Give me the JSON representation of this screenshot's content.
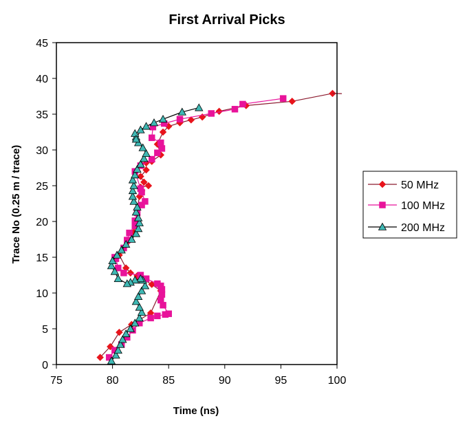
{
  "chart_data": {
    "type": "scatter",
    "title": "First Arrival Picks",
    "xlabel": "Time (ns)",
    "ylabel": "Trace No (0.25 m / trace)",
    "xlim": [
      75,
      100
    ],
    "ylim": [
      0,
      45
    ],
    "xticks": [
      "75",
      "80",
      "85",
      "90",
      "95",
      "100"
    ],
    "yticks": [
      "0",
      "5",
      "10",
      "15",
      "20",
      "25",
      "30",
      "35",
      "40",
      "45"
    ],
    "grid": false,
    "legend_position": "right",
    "series": [
      {
        "name": "50 MHz",
        "marker": "diamond",
        "color": "#e8141c",
        "line_color": "#8b1a2e",
        "x": [
          78.9,
          79.8,
          80.6,
          81.7,
          83.4,
          84.3,
          83.5,
          82.2,
          81.6,
          81.2,
          80.6,
          80.9,
          81.4,
          81.9,
          82.1,
          82.2,
          82.4,
          82.6,
          82.5,
          83.2,
          82.8,
          82.5,
          83.0,
          83.0,
          83.5,
          84.3,
          84.0,
          84.5,
          85.0,
          86.0,
          87.0,
          88.0,
          89.5,
          91.9,
          96.0,
          99.6
        ],
        "y": [
          1.0,
          2.5,
          4.5,
          5.6,
          7.2,
          10.3,
          11.2,
          12.4,
          12.8,
          13.5,
          15.3,
          16.0,
          17.2,
          18.5,
          20.0,
          21.8,
          23.5,
          24.3,
          24.8,
          25.0,
          25.5,
          26.3,
          27.2,
          28.2,
          28.4,
          29.3,
          30.8,
          32.5,
          33.3,
          33.8,
          34.2,
          34.6,
          35.4,
          36.2,
          36.8,
          37.9
        ]
      },
      {
        "name": "100 MHz",
        "marker": "square",
        "color": "#e8139a",
        "line_color": "#e8139a",
        "x": [
          79.7,
          80.2,
          80.8,
          81.3,
          81.8,
          82.4,
          83.4,
          84.0,
          84.7,
          85.0,
          84.5,
          84.3,
          84.4,
          84.4,
          84.3,
          84.0,
          83.0,
          82.5,
          81.0,
          80.5,
          80.3,
          80.2,
          81.0,
          81.3,
          81.5,
          82.0,
          82.0,
          82.2,
          82.6,
          82.9,
          82.6,
          82.5,
          82.0,
          82.5,
          83.5,
          84.0,
          84.4,
          84.3,
          83.5,
          83.6,
          84.6,
          86.0,
          88.8,
          90.9,
          91.6,
          95.2
        ],
        "y": [
          1.0,
          2.0,
          2.8,
          3.8,
          4.8,
          5.8,
          6.5,
          6.8,
          7.0,
          7.1,
          8.3,
          9.0,
          9.8,
          10.5,
          11.0,
          11.3,
          12.0,
          12.5,
          12.8,
          13.5,
          14.8,
          15.0,
          16.3,
          17.4,
          18.4,
          19.4,
          20.1,
          21.2,
          22.3,
          22.8,
          24.1,
          24.6,
          27.0,
          27.8,
          28.7,
          29.6,
          30.2,
          31.0,
          31.7,
          33.2,
          33.7,
          34.3,
          35.1,
          35.7,
          36.4,
          37.2
        ]
      },
      {
        "name": "200 MHz",
        "marker": "triangle",
        "color": "#3fb8b4",
        "line_color": "#000000",
        "x": [
          79.9,
          80.3,
          80.5,
          80.7,
          80.9,
          81.2,
          81.6,
          82.0,
          82.4,
          82.6,
          82.4,
          82.1,
          82.3,
          82.6,
          82.9,
          82.7,
          82.5,
          82.0,
          81.6,
          81.3,
          80.5,
          80.2,
          79.9,
          80.0,
          80.4,
          80.8,
          81.2,
          81.7,
          82.1,
          82.3,
          82.4,
          82.3,
          82.1,
          82.2,
          81.9,
          81.8,
          81.8,
          81.9,
          81.8,
          82.0,
          82.2,
          82.5,
          82.8,
          83.0,
          82.7,
          82.3,
          82.1,
          82.0,
          82.1,
          82.5,
          83.0,
          83.7,
          84.5,
          86.2,
          87.7
        ],
        "y": [
          0.5,
          1.3,
          2.0,
          2.8,
          3.5,
          4.3,
          5.0,
          5.8,
          6.5,
          7.3,
          8.0,
          8.8,
          9.5,
          10.3,
          11.0,
          11.8,
          12.0,
          11.8,
          11.5,
          11.3,
          12.0,
          13.0,
          13.8,
          14.5,
          15.3,
          16.0,
          16.8,
          17.5,
          18.3,
          19.0,
          19.8,
          20.5,
          21.3,
          22.0,
          22.8,
          23.5,
          24.3,
          25.0,
          25.8,
          26.5,
          27.3,
          28.0,
          28.8,
          29.5,
          30.3,
          31.0,
          31.8,
          32.3,
          31.5,
          32.8,
          33.3,
          33.8,
          34.3,
          35.3,
          35.9
        ]
      }
    ]
  }
}
